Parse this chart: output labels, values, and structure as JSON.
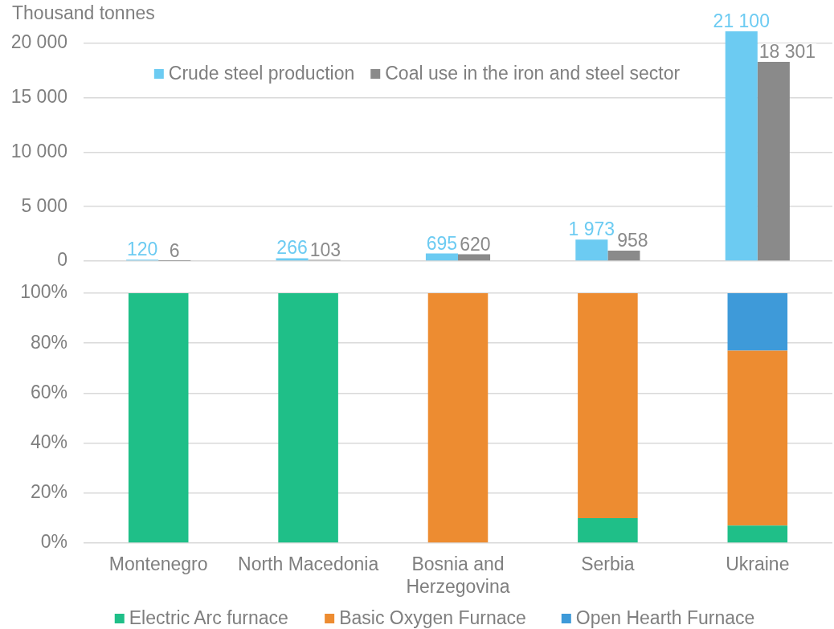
{
  "chart_data": [
    {
      "type": "bar",
      "ylabel": "Thousand tonnes",
      "categories": [
        null,
        null,
        null,
        null,
        null
      ],
      "series": [
        {
          "name": "Crude steel production",
          "color": "#6ccbf2",
          "values": [
            120,
            266,
            695,
            1973,
            21100
          ],
          "value_labels": [
            "120",
            "266",
            "695",
            "1 973",
            "21 100"
          ]
        },
        {
          "name": "Coal use in the iron and steel sector",
          "color": "#8a8a8a",
          "values": [
            6,
            103,
            620,
            958,
            18301
          ],
          "value_labels": [
            "6",
            "103",
            "620",
            "958",
            "18 301"
          ]
        }
      ],
      "ylim": [
        0,
        21100
      ],
      "yticks": [
        0,
        {
          "value": 5000,
          "label": "5 000"
        },
        {
          "value": 10000,
          "label": "10 000"
        },
        {
          "value": 15000,
          "label": "15 000"
        },
        {
          "value": 20000,
          "label": "20 000"
        }
      ],
      "grid": "y",
      "legend": "top"
    },
    {
      "type": "bar",
      "stacked": true,
      "categories": [
        "Montenegro",
        "North Macedonia",
        "Bosnia and Herzegovina",
        "Serbia",
        "Ukraine"
      ],
      "series": [
        {
          "name": "Electric Arc furnace",
          "color": "#1fbf88",
          "values": [
            100,
            100,
            0,
            10,
            7
          ]
        },
        {
          "name": "Basic Oxygen Furnace",
          "color": "#ed8c31",
          "values": [
            0,
            0,
            100,
            90,
            70
          ]
        },
        {
          "name": "Open Hearth Furnace",
          "color": "#3e9ad9",
          "values": [
            0,
            0,
            0,
            0,
            23
          ]
        }
      ],
      "ylim": [
        0,
        100
      ],
      "yticks": [
        {
          "value": 0,
          "label": "0%"
        },
        {
          "value": 20,
          "label": "20%"
        },
        {
          "value": 40,
          "label": "40%"
        },
        {
          "value": 60,
          "label": "60%"
        },
        {
          "value": 80,
          "label": "80%"
        },
        {
          "value": 100,
          "label": "100%"
        }
      ],
      "grid": "y",
      "legend": "bottom"
    }
  ]
}
